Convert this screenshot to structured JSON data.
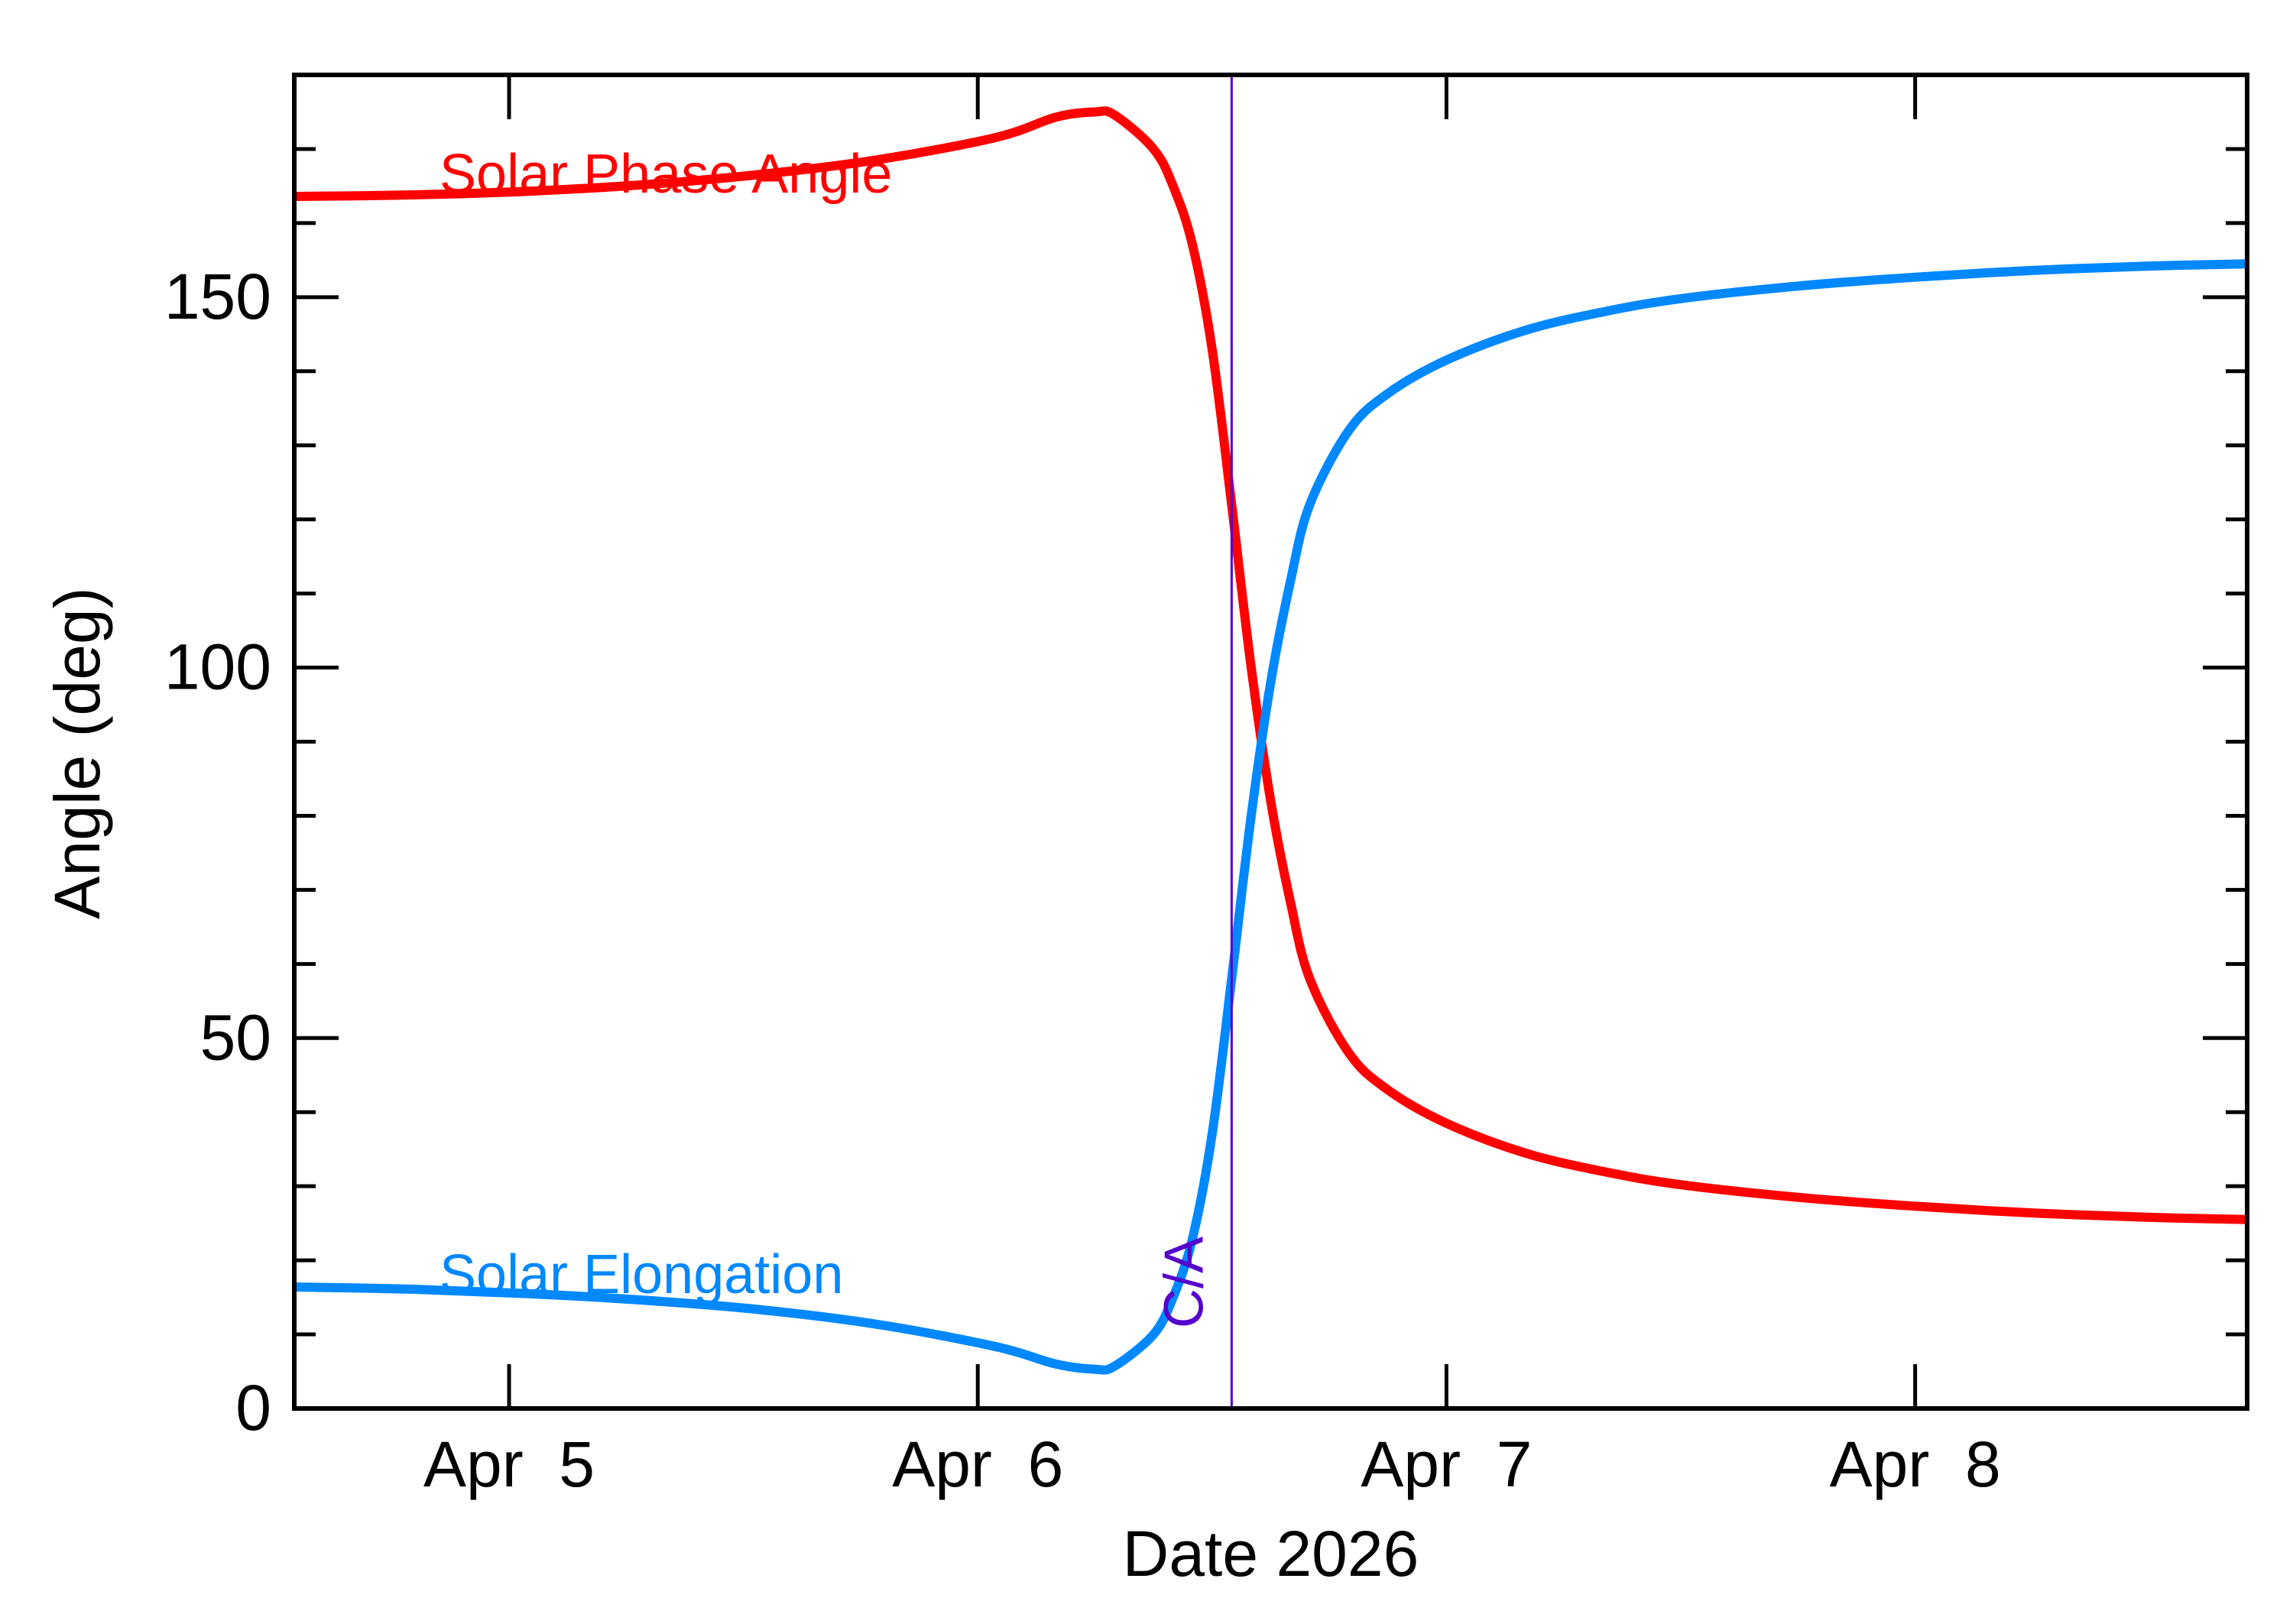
{
  "chart_data": {
    "type": "line",
    "xlabel": "Date 2026",
    "ylabel": "Angle (deg)",
    "ylim": [
      0,
      180
    ],
    "xlim": [
      "2026-04-04 13:00",
      "2026-04-08 17:00"
    ],
    "x_ticks": [
      {
        "date": "2026-04-05",
        "label": "Apr  5"
      },
      {
        "date": "2026-04-06",
        "label": "Apr  6"
      },
      {
        "date": "2026-04-07",
        "label": "Apr  7"
      },
      {
        "date": "2026-04-08",
        "label": "Apr  8"
      }
    ],
    "y_ticks": [
      {
        "value": 0,
        "label": "0"
      },
      {
        "value": 50,
        "label": "50"
      },
      {
        "value": 100,
        "label": "100"
      },
      {
        "value": 150,
        "label": "150"
      }
    ],
    "grid": false,
    "closest_approach": {
      "label": "C/A",
      "date": "2026-04-06 13:00",
      "color": "#5500cc"
    },
    "series": [
      {
        "name": "Solar Phase Angle",
        "color": "#ff0000",
        "points": [
          [
            "2026-04-04 13:00",
            163.6
          ],
          [
            "2026-04-04 19:00",
            163.8
          ],
          [
            "2026-04-05 01:00",
            164.3
          ],
          [
            "2026-04-05 07:00",
            165.2
          ],
          [
            "2026-04-05 13:00",
            166.6
          ],
          [
            "2026-04-05 19:00",
            168.6
          ],
          [
            "2026-04-06 01:00",
            171.6
          ],
          [
            "2026-04-06 04:00",
            174.3
          ],
          [
            "2026-04-06 06:00",
            175.0
          ],
          [
            "2026-04-06 07:00",
            174.6
          ],
          [
            "2026-04-06 09:00",
            170.0
          ],
          [
            "2026-04-06 10:00",
            165.0
          ],
          [
            "2026-04-06 11:00",
            157.0
          ],
          [
            "2026-04-06 12:00",
            143.0
          ],
          [
            "2026-04-06 13:00",
            122.0
          ],
          [
            "2026-04-06 14:00",
            100.0
          ],
          [
            "2026-04-06 15:00",
            82.0
          ],
          [
            "2026-04-06 16:00",
            68.5
          ],
          [
            "2026-04-06 17:00",
            58.0
          ],
          [
            "2026-04-06 19:00",
            48.0
          ],
          [
            "2026-04-06 21:00",
            43.0
          ],
          [
            "2026-04-07 00:00",
            38.5
          ],
          [
            "2026-04-07 04:00",
            34.5
          ],
          [
            "2026-04-07 08:00",
            32.0
          ],
          [
            "2026-04-07 12:00",
            30.2
          ],
          [
            "2026-04-07 18:00",
            28.5
          ],
          [
            "2026-04-08 00:00",
            27.3
          ],
          [
            "2026-04-08 06:00",
            26.4
          ],
          [
            "2026-04-08 12:00",
            25.8
          ],
          [
            "2026-04-08 17:00",
            25.5
          ]
        ]
      },
      {
        "name": "Solar Elongation",
        "color": "#0088ff",
        "points": [
          [
            "2026-04-04 13:00",
            16.4
          ],
          [
            "2026-04-04 19:00",
            16.1
          ],
          [
            "2026-04-05 01:00",
            15.5
          ],
          [
            "2026-04-05 07:00",
            14.6
          ],
          [
            "2026-04-05 13:00",
            13.3
          ],
          [
            "2026-04-05 19:00",
            11.3
          ],
          [
            "2026-04-06 01:00",
            8.3
          ],
          [
            "2026-04-06 04:00",
            6.0
          ],
          [
            "2026-04-06 06:00",
            5.3
          ],
          [
            "2026-04-06 07:00",
            5.7
          ],
          [
            "2026-04-06 09:00",
            10.0
          ],
          [
            "2026-04-06 10:00",
            15.0
          ],
          [
            "2026-04-06 11:00",
            23.0
          ],
          [
            "2026-04-06 12:00",
            37.0
          ],
          [
            "2026-04-06 13:00",
            58.0
          ],
          [
            "2026-04-06 14:00",
            80.0
          ],
          [
            "2026-04-06 15:00",
            98.0
          ],
          [
            "2026-04-06 16:00",
            111.5
          ],
          [
            "2026-04-06 17:00",
            122.0
          ],
          [
            "2026-04-06 19:00",
            132.0
          ],
          [
            "2026-04-06 21:00",
            137.0
          ],
          [
            "2026-04-07 00:00",
            141.5
          ],
          [
            "2026-04-07 04:00",
            145.5
          ],
          [
            "2026-04-07 08:00",
            148.0
          ],
          [
            "2026-04-07 12:00",
            149.8
          ],
          [
            "2026-04-07 18:00",
            151.5
          ],
          [
            "2026-04-08 00:00",
            152.7
          ],
          [
            "2026-04-08 06:00",
            153.6
          ],
          [
            "2026-04-08 12:00",
            154.2
          ],
          [
            "2026-04-08 17:00",
            154.5
          ]
        ]
      }
    ]
  }
}
